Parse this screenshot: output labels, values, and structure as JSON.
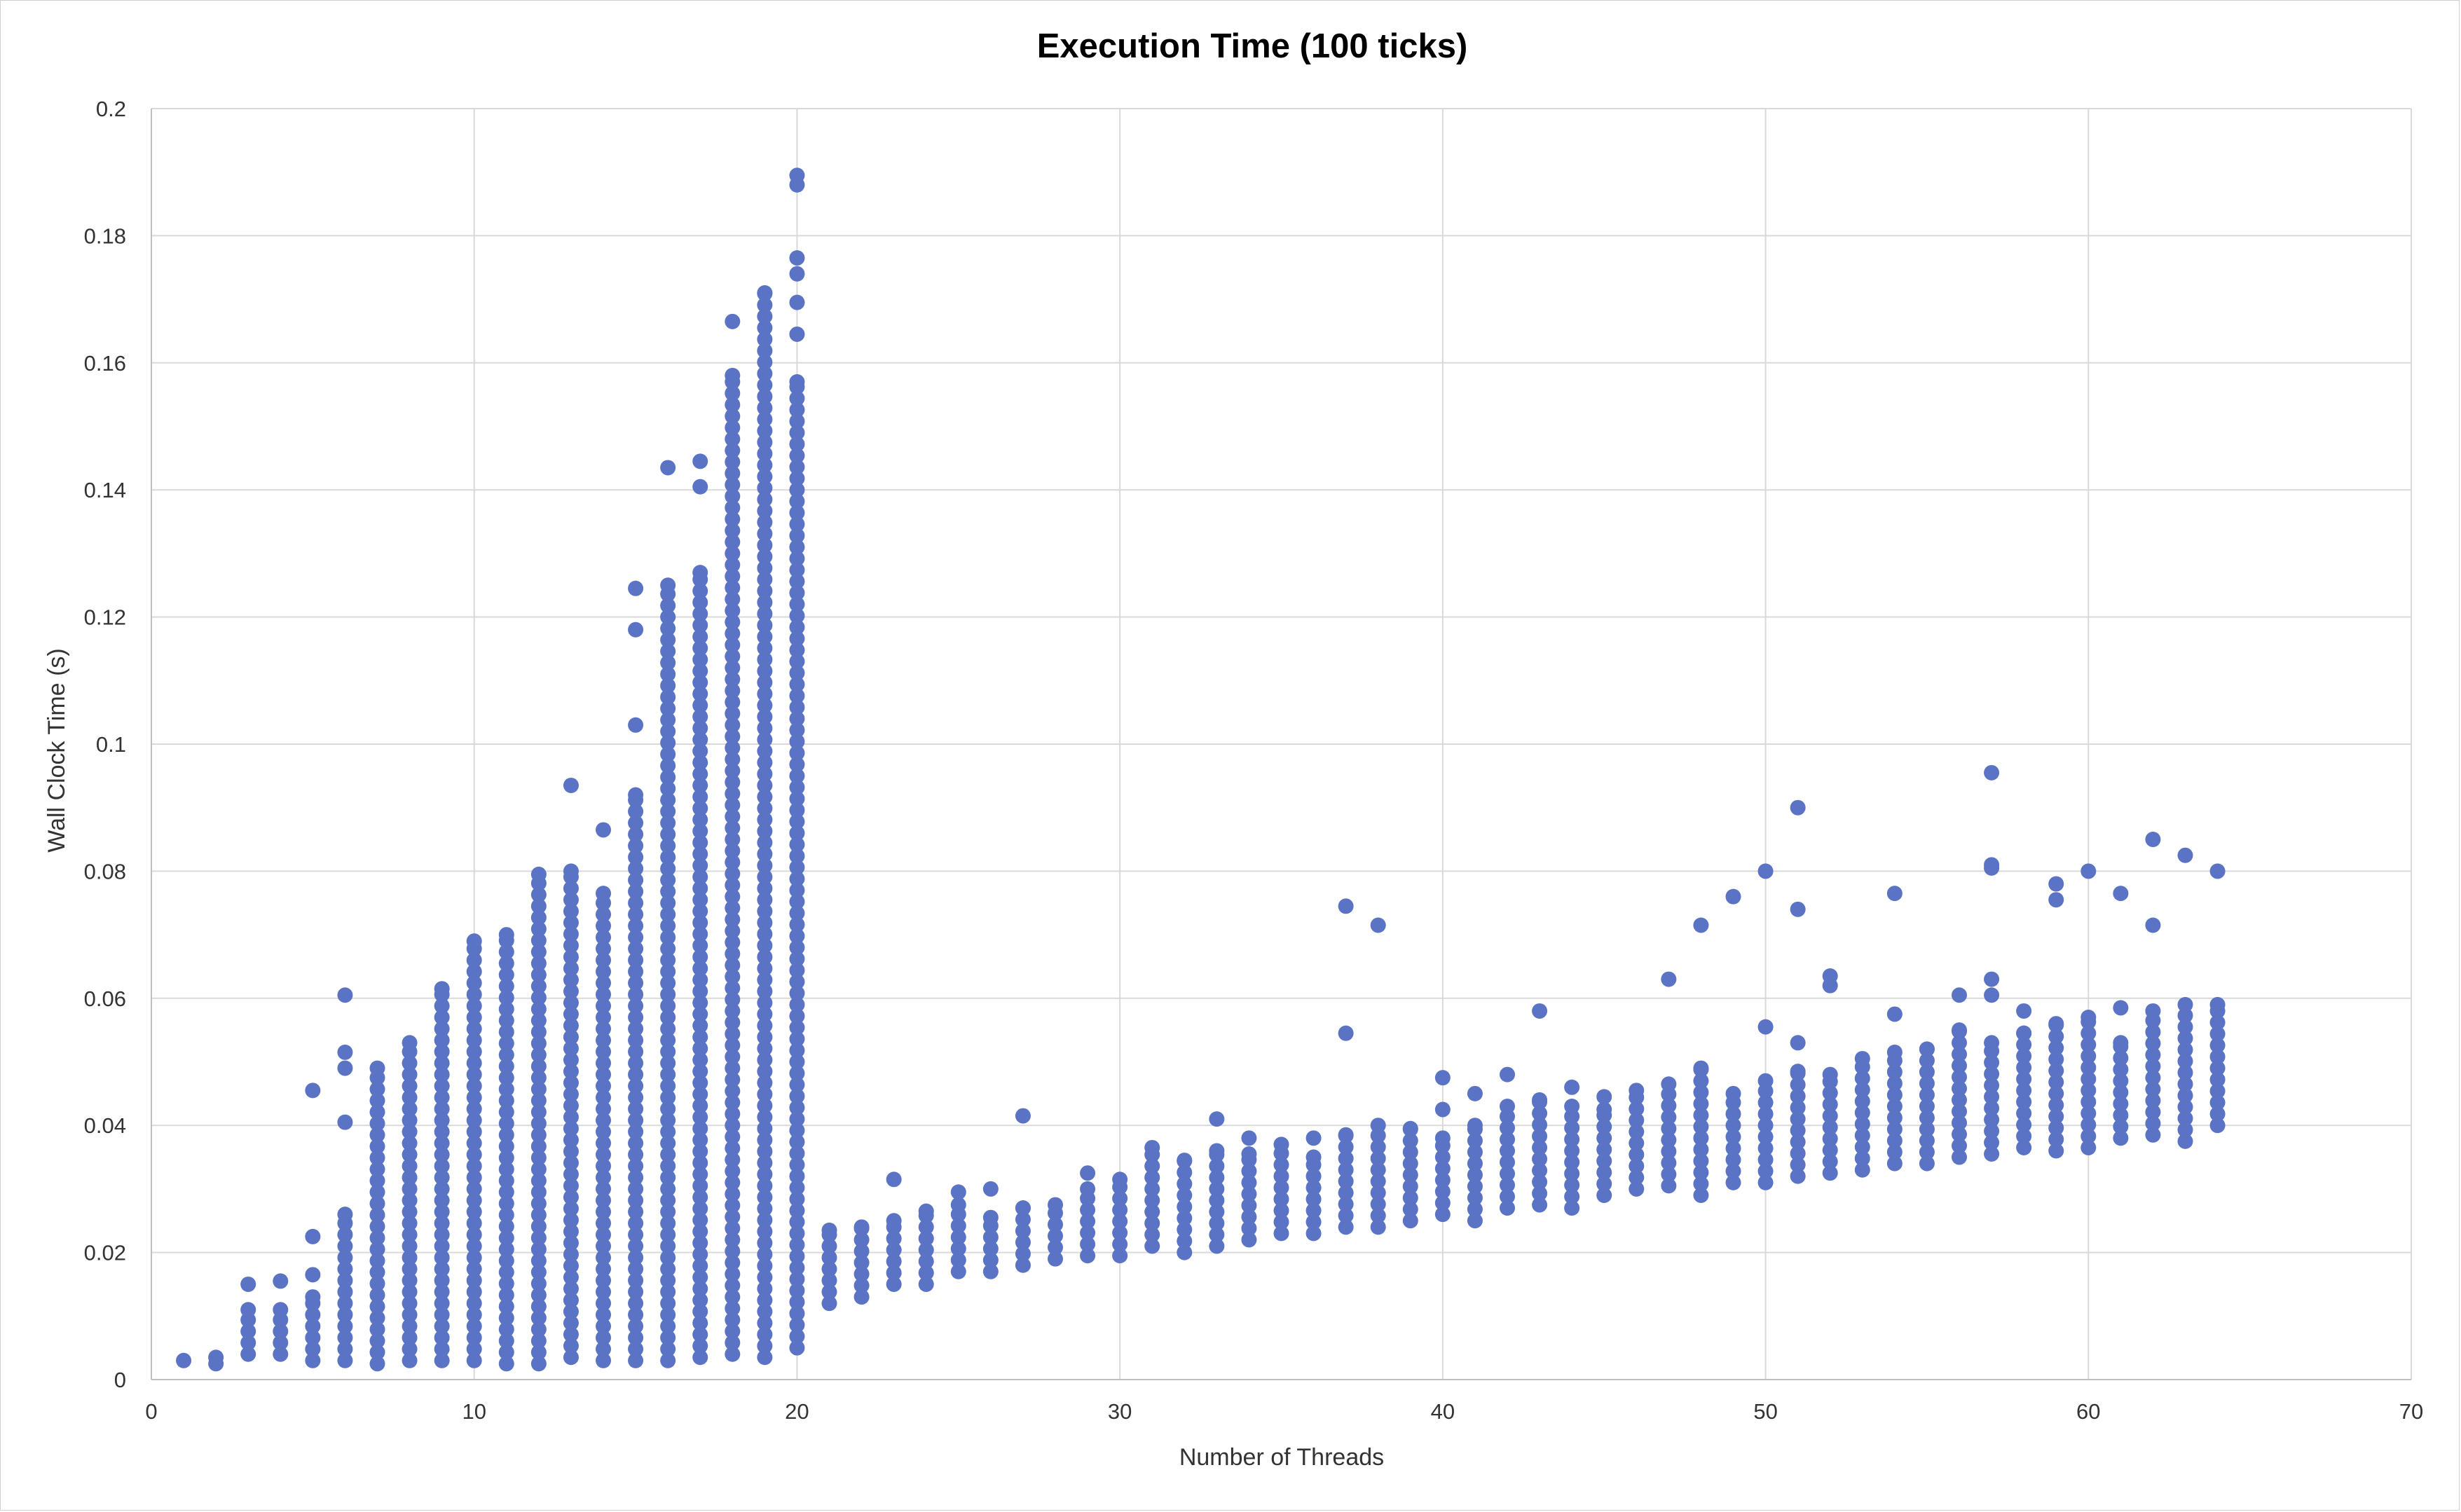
{
  "chart_data": {
    "type": "scatter",
    "title": "Execution Time (100 ticks)",
    "xlabel": "Number of Threads",
    "ylabel": "Wall Clock Time (s)",
    "xlim": [
      0,
      70
    ],
    "ylim": [
      0,
      0.2
    ],
    "xticks": [
      0,
      10,
      20,
      30,
      40,
      50,
      60,
      70
    ],
    "yticks": [
      0,
      0.02,
      0.04,
      0.06,
      0.08,
      0.1,
      0.12,
      0.14,
      0.16,
      0.18,
      0.2
    ],
    "xtick_labels": [
      "0",
      "10",
      "20",
      "30",
      "40",
      "50",
      "60",
      "70"
    ],
    "ytick_labels": [
      "0",
      "0.02",
      "0.04",
      "0.06",
      "0.08",
      "0.1",
      "0.12",
      "0.14",
      "0.16",
      "0.18",
      "0.2"
    ],
    "grid": true,
    "marker_color": "#5b73c4",
    "series": [
      {
        "x": [
          1,
          2,
          2
        ],
        "y": [
          0.003,
          0.0025,
          0.0035
        ]
      },
      {
        "ranges": [
          {
            "x": 3,
            "ymin": 0.004,
            "ymax": 0.011,
            "extra": [
              0.015
            ]
          },
          {
            "x": 4,
            "ymin": 0.004,
            "ymax": 0.011,
            "extra": [
              0.0155
            ]
          },
          {
            "x": 5,
            "ymin": 0.003,
            "ymax": 0.013,
            "extra": [
              0.0165,
              0.0225,
              0.0455
            ]
          },
          {
            "x": 6,
            "ymin": 0.003,
            "ymax": 0.026,
            "extra": [
              0.0405,
              0.049,
              0.0515,
              0.0605
            ]
          },
          {
            "x": 7,
            "ymin": 0.0025,
            "ymax": 0.049
          },
          {
            "x": 8,
            "ymin": 0.003,
            "ymax": 0.053
          },
          {
            "x": 9,
            "ymin": 0.003,
            "ymax": 0.0615
          },
          {
            "x": 10,
            "ymin": 0.003,
            "ymax": 0.069
          },
          {
            "x": 11,
            "ymin": 0.0025,
            "ymax": 0.07
          },
          {
            "x": 12,
            "ymin": 0.0025,
            "ymax": 0.0795
          },
          {
            "x": 13,
            "ymin": 0.0035,
            "ymax": 0.08,
            "extra": [
              0.0935
            ]
          },
          {
            "x": 14,
            "ymin": 0.003,
            "ymax": 0.0765,
            "extra": [
              0.0865
            ]
          },
          {
            "x": 15,
            "ymin": 0.003,
            "ymax": 0.092,
            "extra": [
              0.103,
              0.118,
              0.1245
            ]
          },
          {
            "x": 16,
            "ymin": 0.003,
            "ymax": 0.125,
            "extra": [
              0.1435
            ]
          },
          {
            "x": 17,
            "ymin": 0.0035,
            "ymax": 0.127,
            "extra": [
              0.1405,
              0.1445
            ]
          },
          {
            "x": 18,
            "ymin": 0.004,
            "ymax": 0.158,
            "extra": [
              0.1665
            ]
          },
          {
            "x": 19,
            "ymin": 0.0035,
            "ymax": 0.171
          },
          {
            "x": 20,
            "ymin": 0.005,
            "ymax": 0.157,
            "extra": [
              0.1645,
              0.1695,
              0.174,
              0.1765,
              0.188,
              0.1895
            ]
          },
          {
            "x": 21,
            "ymin": 0.012,
            "ymax": 0.0235
          },
          {
            "x": 22,
            "ymin": 0.013,
            "ymax": 0.024
          },
          {
            "x": 23,
            "ymin": 0.015,
            "ymax": 0.025,
            "extra": [
              0.0315
            ]
          },
          {
            "x": 24,
            "ymin": 0.015,
            "ymax": 0.0265
          },
          {
            "x": 25,
            "ymin": 0.017,
            "ymax": 0.0275,
            "extra": [
              0.0295
            ]
          },
          {
            "x": 26,
            "ymin": 0.017,
            "ymax": 0.0255,
            "extra": [
              0.03
            ]
          },
          {
            "x": 27,
            "ymin": 0.018,
            "ymax": 0.027,
            "extra": [
              0.0415
            ]
          },
          {
            "x": 28,
            "ymin": 0.019,
            "ymax": 0.0275
          },
          {
            "x": 29,
            "ymin": 0.0195,
            "ymax": 0.03,
            "extra": [
              0.0325
            ]
          },
          {
            "x": 30,
            "ymin": 0.0195,
            "ymax": 0.0315
          },
          {
            "x": 31,
            "ymin": 0.021,
            "ymax": 0.0365
          },
          {
            "x": 32,
            "ymin": 0.02,
            "ymax": 0.0345
          },
          {
            "x": 33,
            "ymin": 0.021,
            "ymax": 0.036,
            "extra": [
              0.041
            ]
          },
          {
            "x": 34,
            "ymin": 0.022,
            "ymax": 0.0355,
            "extra": [
              0.038
            ]
          },
          {
            "x": 35,
            "ymin": 0.023,
            "ymax": 0.037
          },
          {
            "x": 36,
            "ymin": 0.023,
            "ymax": 0.035,
            "extra": [
              0.038
            ]
          },
          {
            "x": 37,
            "ymin": 0.024,
            "ymax": 0.0385,
            "extra": [
              0.0545,
              0.0745
            ]
          },
          {
            "x": 38,
            "ymin": 0.024,
            "ymax": 0.04,
            "extra": [
              0.0715
            ]
          },
          {
            "x": 39,
            "ymin": 0.025,
            "ymax": 0.0395
          },
          {
            "x": 40,
            "ymin": 0.026,
            "ymax": 0.038,
            "extra": [
              0.0425,
              0.0475
            ]
          },
          {
            "x": 41,
            "ymin": 0.025,
            "ymax": 0.04,
            "extra": [
              0.045
            ]
          },
          {
            "x": 42,
            "ymin": 0.027,
            "ymax": 0.043,
            "extra": [
              0.048
            ]
          },
          {
            "x": 43,
            "ymin": 0.0275,
            "ymax": 0.044,
            "extra": [
              0.058
            ]
          },
          {
            "x": 44,
            "ymin": 0.027,
            "ymax": 0.043,
            "extra": [
              0.046
            ]
          },
          {
            "x": 45,
            "ymin": 0.029,
            "ymax": 0.0425,
            "extra": [
              0.0445
            ]
          },
          {
            "x": 46,
            "ymin": 0.03,
            "ymax": 0.0455
          },
          {
            "x": 47,
            "ymin": 0.0305,
            "ymax": 0.0465,
            "extra": [
              0.063
            ]
          },
          {
            "x": 48,
            "ymin": 0.029,
            "ymax": 0.049,
            "extra": [
              0.0715
            ]
          },
          {
            "x": 49,
            "ymin": 0.031,
            "ymax": 0.045,
            "extra": [
              0.076
            ]
          },
          {
            "x": 50,
            "ymin": 0.031,
            "ymax": 0.047,
            "extra": [
              0.0555,
              0.08
            ]
          },
          {
            "x": 51,
            "ymin": 0.032,
            "ymax": 0.0485,
            "extra": [
              0.053,
              0.074,
              0.09
            ]
          },
          {
            "x": 52,
            "ymin": 0.0325,
            "ymax": 0.048,
            "extra": [
              0.062,
              0.0635
            ]
          },
          {
            "x": 53,
            "ymin": 0.033,
            "ymax": 0.0505
          },
          {
            "x": 54,
            "ymin": 0.034,
            "ymax": 0.0515,
            "extra": [
              0.0575,
              0.0765
            ]
          },
          {
            "x": 55,
            "ymin": 0.034,
            "ymax": 0.052
          },
          {
            "x": 56,
            "ymin": 0.035,
            "ymax": 0.055,
            "extra": [
              0.0605
            ]
          },
          {
            "x": 57,
            "ymin": 0.0355,
            "ymax": 0.053,
            "extra": [
              0.0605,
              0.063,
              0.0805,
              0.081,
              0.0955
            ]
          },
          {
            "x": 58,
            "ymin": 0.0365,
            "ymax": 0.0545,
            "extra": [
              0.058
            ]
          },
          {
            "x": 59,
            "ymin": 0.036,
            "ymax": 0.056,
            "extra": [
              0.0755,
              0.078
            ]
          },
          {
            "x": 60,
            "ymin": 0.0365,
            "ymax": 0.057,
            "extra": [
              0.08
            ]
          },
          {
            "x": 61,
            "ymin": 0.038,
            "ymax": 0.053,
            "extra": [
              0.0585,
              0.0765
            ]
          },
          {
            "x": 62,
            "ymin": 0.0385,
            "ymax": 0.058,
            "extra": [
              0.0715,
              0.085
            ]
          },
          {
            "x": 63,
            "ymin": 0.0375,
            "ymax": 0.059,
            "extra": [
              0.0825
            ]
          },
          {
            "x": 64,
            "ymin": 0.04,
            "ymax": 0.059,
            "extra": [
              0.08
            ]
          }
        ]
      }
    ]
  }
}
